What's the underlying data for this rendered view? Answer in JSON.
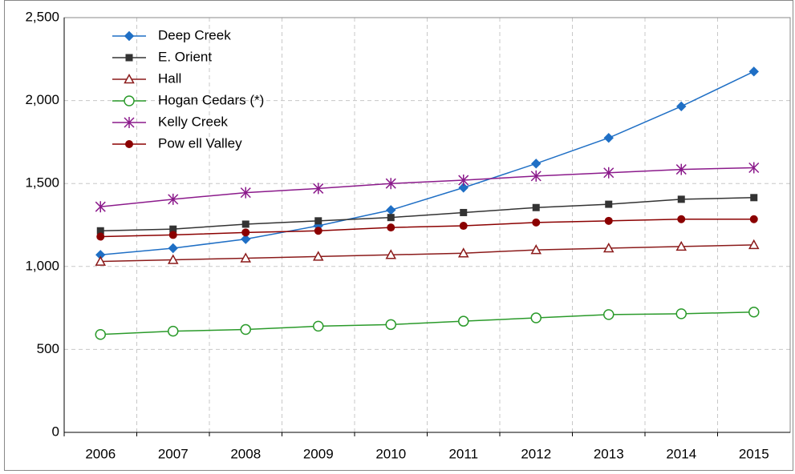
{
  "chart_data": {
    "type": "line",
    "categories": [
      "2006",
      "2007",
      "2008",
      "2009",
      "2010",
      "2011",
      "2012",
      "2013",
      "2014",
      "2015"
    ],
    "series": [
      {
        "name": "Deep Creek",
        "color": "#1f6fc5",
        "marker": "diamond",
        "values": [
          1070,
          1110,
          1165,
          1245,
          1340,
          1475,
          1620,
          1775,
          1965,
          2175
        ]
      },
      {
        "name": "E. Orient",
        "color": "#333333",
        "marker": "square",
        "values": [
          1215,
          1225,
          1255,
          1275,
          1295,
          1325,
          1355,
          1375,
          1405,
          1415
        ]
      },
      {
        "name": "Hall",
        "color": "#8b1a1a",
        "marker": "triangle-open",
        "values": [
          1030,
          1040,
          1050,
          1060,
          1070,
          1080,
          1100,
          1110,
          1120,
          1130
        ]
      },
      {
        "name": "Hogan Cedars (*)",
        "color": "#2a9a2a",
        "marker": "circle-open",
        "values": [
          590,
          610,
          620,
          640,
          650,
          670,
          690,
          710,
          715,
          725
        ]
      },
      {
        "name": "Kelly Creek",
        "color": "#8b1a8b",
        "marker": "asterisk",
        "values": [
          1360,
          1405,
          1445,
          1470,
          1500,
          1520,
          1545,
          1565,
          1585,
          1595
        ]
      },
      {
        "name": "Pow ell Valley",
        "color": "#8b0000",
        "marker": "circle",
        "values": [
          1180,
          1190,
          1205,
          1215,
          1235,
          1245,
          1265,
          1275,
          1285,
          1285
        ]
      }
    ],
    "ylim": [
      0,
      2500
    ],
    "yticks": [
      0,
      500,
      {
        "value": 1000,
        "label": "1,000"
      },
      {
        "value": 1500,
        "label": "1,500"
      },
      {
        "value": 2000,
        "label": "2,000"
      },
      {
        "value": 2500,
        "label": "2,500"
      }
    ],
    "grid": true,
    "legend": "upper left"
  }
}
